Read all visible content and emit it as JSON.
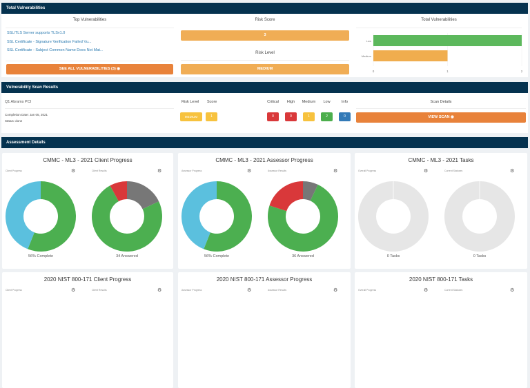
{
  "total_vulnerabilities": {
    "header": "Total Vulnerabilities",
    "top_title": "Top Vulnerabilities",
    "items": [
      "SSL/TLS Server supports TLSv1.0",
      "SSL Certificate - Signature Verification Failed Vu...",
      "SSL Certificate - Subject Common Name Does Not Mat..."
    ],
    "see_all": "SEE ALL VULNERABILITIES (3) ◉",
    "risk_score_title": "Risk Score",
    "risk_score": "3",
    "risk_level_title": "Risk Level",
    "risk_level": "MEDIUM",
    "chart_title": "Total Vulnerabilities"
  },
  "chart_data": {
    "type": "bar",
    "orientation": "horizontal",
    "title": "Total Vulnerabilities",
    "categories": [
      "Low",
      "Medium"
    ],
    "values": [
      2,
      1
    ],
    "colors": [
      "#5cb85c",
      "#f0ad4e"
    ],
    "xlim": [
      0,
      2
    ],
    "xticks": [
      "0",
      "1",
      "2"
    ]
  },
  "scan": {
    "header": "Vulnerability Scan Results",
    "name": "Q1 Abrams PCI",
    "completion": "Completion Date: Jan 05, 2021",
    "status": "Status: done",
    "col_risk": "Risk Level",
    "col_score": "Score",
    "risk": "MEDIUM",
    "score": "1",
    "sev": [
      {
        "label": "Critical",
        "value": "0",
        "color": "#d9383a"
      },
      {
        "label": "High",
        "value": "0",
        "color": "#d9383a"
      },
      {
        "label": "Medium",
        "value": "1",
        "color": "#f7c23e"
      },
      {
        "label": "Low",
        "value": "2",
        "color": "#4cae4c"
      },
      {
        "label": "Info",
        "value": "0",
        "color": "#337ab7"
      }
    ],
    "details_title": "Scan Details",
    "view": "VIEW SCAN ◉"
  },
  "assessment": {
    "header": "Assessment Details",
    "cards": [
      {
        "title": "CMMC - ML3 - 2021 Client Progress",
        "charts": [
          {
            "label": "Client Progress",
            "footer": "56% Complete",
            "segments": [
              {
                "v": 56,
                "c": "#4caf50"
              },
              {
                "v": 44,
                "c": "#5bc0de"
              }
            ]
          },
          {
            "label": "Client Results",
            "footer": "34 Answered",
            "segments": [
              {
                "v": 18,
                "c": "#777777"
              },
              {
                "v": 74,
                "c": "#4caf50"
              },
              {
                "v": 8,
                "c": "#d9383a"
              }
            ]
          }
        ]
      },
      {
        "title": "CMMC - ML3 - 2021 Assessor Progress",
        "charts": [
          {
            "label": "Assessor Progress",
            "footer": "56% Complete",
            "segments": [
              {
                "v": 56,
                "c": "#4caf50"
              },
              {
                "v": 44,
                "c": "#5bc0de"
              }
            ]
          },
          {
            "label": "Assessor Results",
            "footer": "36 Answered",
            "segments": [
              {
                "v": 7,
                "c": "#777777"
              },
              {
                "v": 73,
                "c": "#4caf50"
              },
              {
                "v": 20,
                "c": "#d9383a"
              }
            ]
          }
        ]
      },
      {
        "title": "CMMC - ML3 - 2021 Tasks",
        "charts": [
          {
            "label": "Overall Progress",
            "footer": "0 Tasks",
            "segments": [
              {
                "v": 100,
                "c": "#e6e6e6"
              }
            ]
          },
          {
            "label": "Current Statuses",
            "footer": "0 Tasks",
            "segments": [
              {
                "v": 100,
                "c": "#e6e6e6"
              }
            ]
          }
        ]
      },
      {
        "title": "2020 NIST 800-171 Client Progress",
        "charts": [
          {
            "label": "Client Progress"
          },
          {
            "label": "Client Results"
          }
        ]
      },
      {
        "title": "2020 NIST 800-171 Assessor Progress",
        "charts": [
          {
            "label": "Assessor Progress"
          },
          {
            "label": "Assessor Results"
          }
        ]
      },
      {
        "title": "2020 NIST 800-171 Tasks",
        "charts": [
          {
            "label": "Overall Progress"
          },
          {
            "label": "Current Statuses"
          }
        ]
      }
    ]
  }
}
